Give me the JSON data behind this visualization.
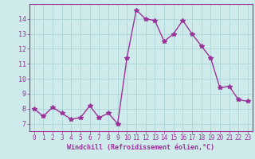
{
  "x": [
    0,
    1,
    2,
    3,
    4,
    5,
    6,
    7,
    8,
    9,
    10,
    11,
    12,
    13,
    14,
    15,
    16,
    17,
    18,
    19,
    20,
    21,
    22,
    23
  ],
  "y": [
    8.0,
    7.5,
    8.1,
    7.7,
    7.3,
    7.4,
    8.2,
    7.4,
    7.7,
    7.0,
    11.4,
    14.6,
    14.0,
    13.9,
    12.5,
    13.0,
    13.9,
    13.0,
    12.2,
    11.4,
    9.4,
    9.5,
    8.6,
    8.5
  ],
  "xlabel": "Windchill (Refroidissement éolien,°C)",
  "xlim": [
    -0.5,
    23.5
  ],
  "ylim": [
    6.5,
    15.0
  ],
  "yticks": [
    7,
    8,
    9,
    10,
    11,
    12,
    13,
    14
  ],
  "xticks": [
    0,
    1,
    2,
    3,
    4,
    5,
    6,
    7,
    8,
    9,
    10,
    11,
    12,
    13,
    14,
    15,
    16,
    17,
    18,
    19,
    20,
    21,
    22,
    23
  ],
  "line_color": "#993399",
  "marker": "*",
  "marker_size": 4,
  "bg_color": "#ceeaea",
  "grid_color": "#b0d8d8",
  "tick_label_color": "#993399",
  "xlabel_color": "#993399",
  "line_width": 1.0,
  "spine_color": "#993399"
}
